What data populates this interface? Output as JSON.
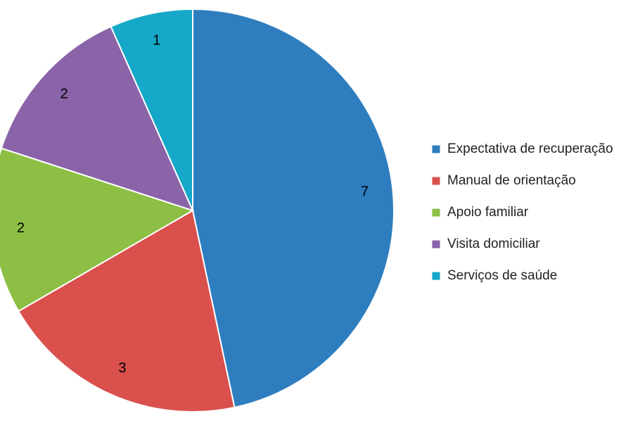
{
  "chart_data": {
    "type": "pie",
    "title": "",
    "categories": [
      "Expectativa de recuperação",
      "Manual de orientação",
      "Apoio familiar",
      "Visita domiciliar",
      "Serviços de saúde"
    ],
    "values": [
      7,
      3,
      2,
      2,
      1
    ],
    "colors": [
      "#2e7ebf",
      "#d9504d",
      "#8cbf44",
      "#8a63a8",
      "#16a8c8"
    ],
    "legend_placement": "right",
    "show_data_labels": true
  }
}
